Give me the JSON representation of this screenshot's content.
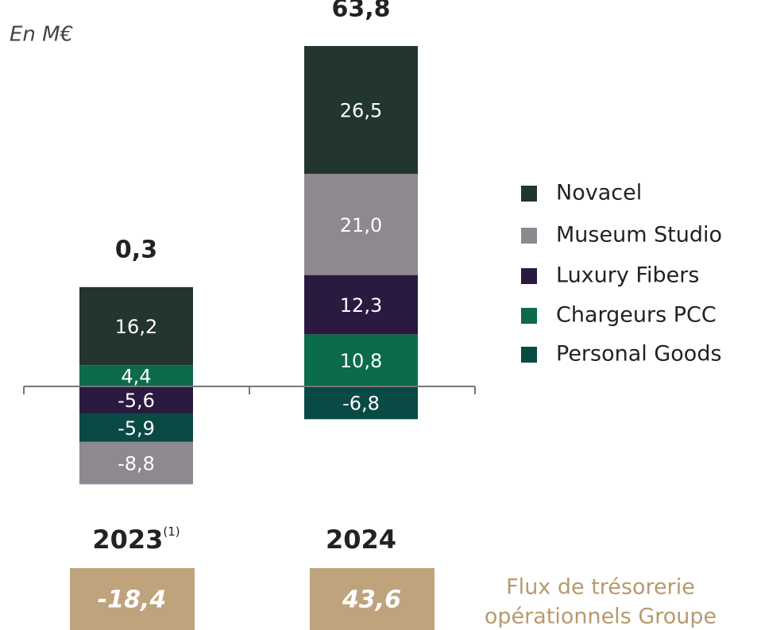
{
  "chart_data": {
    "type": "bar",
    "stacked": true,
    "subtitle": "En M€",
    "categories": [
      "2023",
      "2024"
    ],
    "category_notes": [
      "(1)",
      null
    ],
    "series": [
      {
        "name": "Novacel",
        "color": "#22352f",
        "values": [
          16.2,
          26.5
        ],
        "value_labels": [
          "16,2",
          "26,5"
        ]
      },
      {
        "name": "Museum Studio",
        "color": "#8e8890",
        "values": [
          -8.8,
          21.0
        ],
        "value_labels": [
          "-8,8",
          "21,0"
        ]
      },
      {
        "name": "Luxury Fibers",
        "color": "#2a1a40",
        "values": [
          -5.6,
          12.3
        ],
        "value_labels": [
          "-5,6",
          "12,3"
        ]
      },
      {
        "name": "Chargeurs PCC",
        "color": "#0b6b4a",
        "values": [
          4.4,
          10.8
        ],
        "value_labels": [
          "4,4",
          "10,8"
        ]
      },
      {
        "name": "Personal Goods",
        "color": "#0a4a44",
        "values": [
          -5.9,
          -6.8
        ],
        "value_labels": [
          "-5,9",
          "-6,8"
        ]
      }
    ],
    "totals": {
      "values": [
        0.3,
        63.8
      ],
      "value_labels": [
        "0,3",
        "63,8"
      ]
    },
    "cash_flow": {
      "label_lines": [
        "Flux de trésorerie",
        "opérationnels Groupe"
      ],
      "color": "#bfa37c",
      "values": [
        -18.4,
        43.6
      ],
      "value_labels": [
        "-18,4",
        "43,6"
      ]
    }
  }
}
